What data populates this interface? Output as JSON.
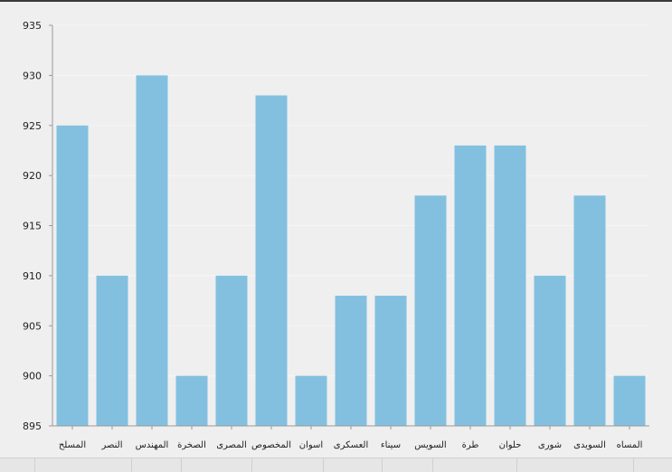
{
  "colors": {
    "bar": "#83c0e0",
    "axis": "#9a9a9a",
    "background": "#efefef",
    "grid": "#f6f6f6"
  },
  "chart_data": {
    "type": "bar",
    "title": "",
    "xlabel": "",
    "ylabel": "",
    "ylim": [
      895,
      935
    ],
    "yticks": [
      895,
      900,
      905,
      910,
      915,
      920,
      925,
      930,
      935
    ],
    "grid": true,
    "categories": [
      "المسلح",
      "النصر",
      "المهندس",
      "الصخرة",
      "المصرى",
      "المخصوص",
      "اسوان",
      "العسكرى",
      "سيناء",
      "السويس",
      "طرة",
      "حلوان",
      "شورى",
      "السويدى",
      "المساه"
    ],
    "values": [
      925,
      910,
      930,
      900,
      910,
      928,
      900,
      908,
      908,
      918,
      923,
      923,
      910,
      918,
      900
    ]
  }
}
